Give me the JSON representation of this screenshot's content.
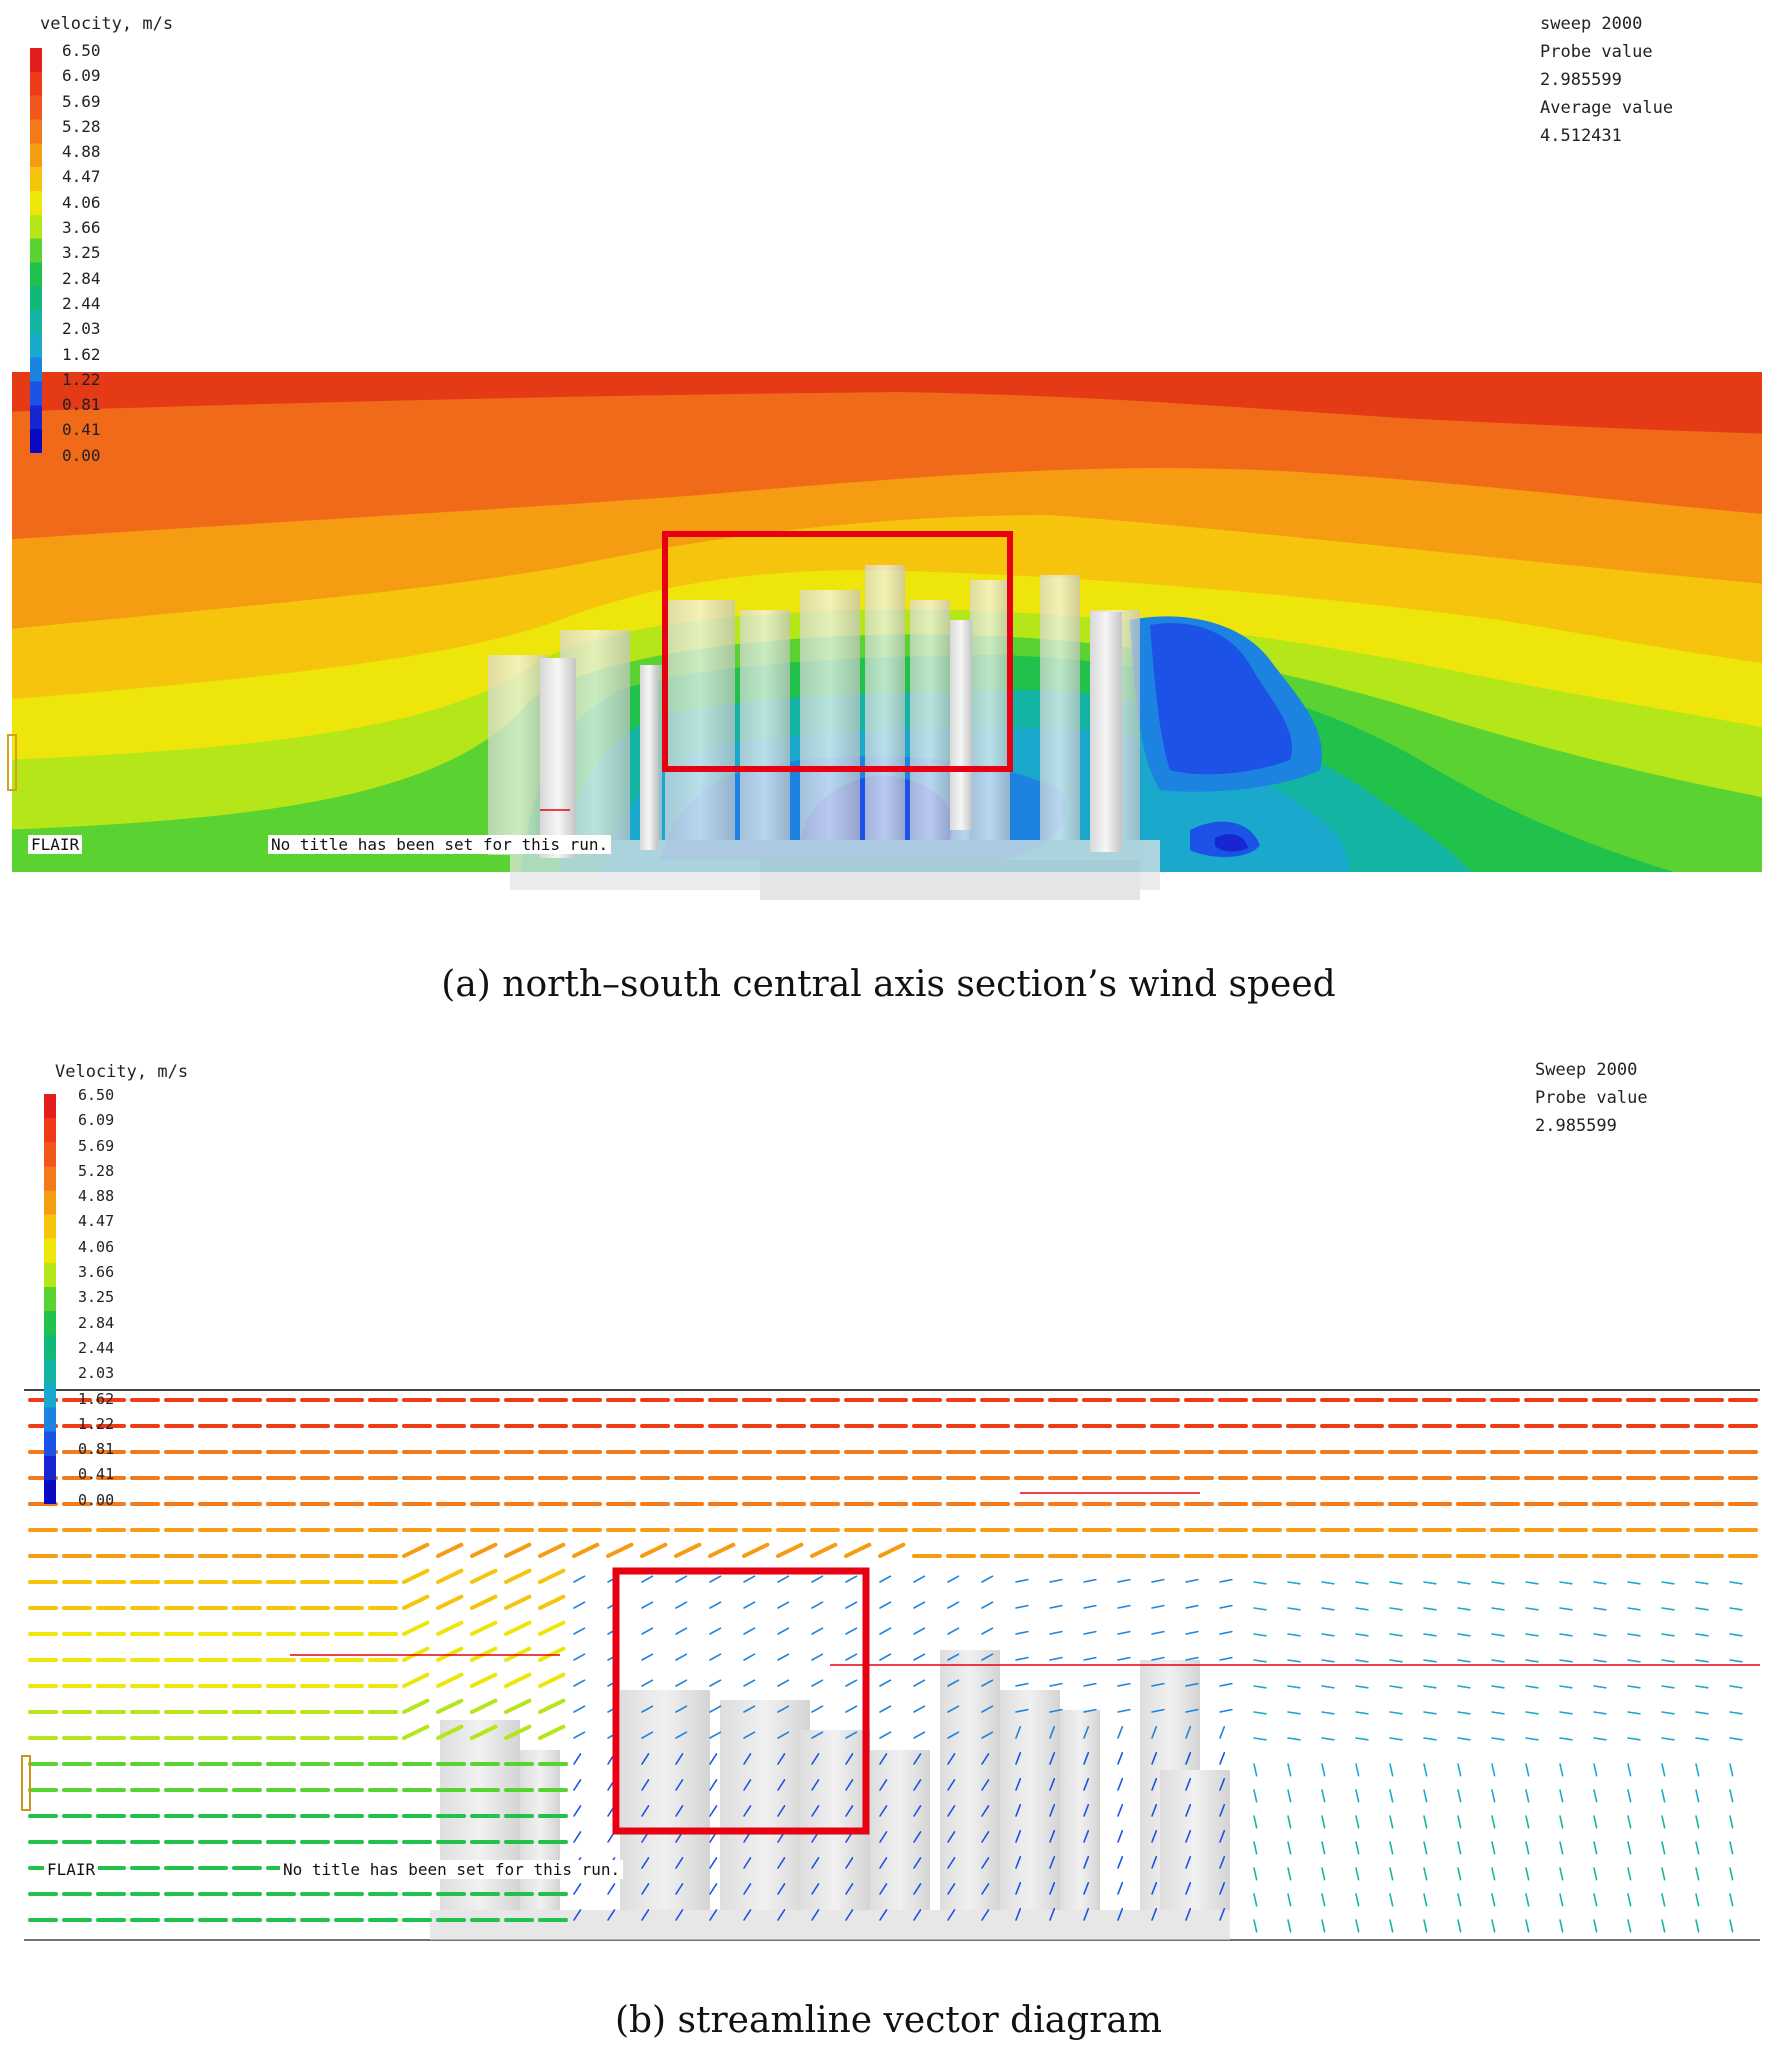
{
  "legend": {
    "title_a": "velocity, m/s",
    "title_b": "Velocity, m/s",
    "values": [
      "6.50",
      "6.09",
      "5.69",
      "5.28",
      "4.88",
      "4.47",
      "4.06",
      "3.66",
      "3.25",
      "2.84",
      "2.44",
      "2.03",
      "1.62",
      "1.22",
      "0.81",
      "0.41",
      "0.00"
    ],
    "colors": [
      "#e41e1e",
      "#ee3a16",
      "#f2561a",
      "#f27a1a",
      "#f59c12",
      "#f6c40c",
      "#eee60a",
      "#b4e61a",
      "#5ad232",
      "#20c24c",
      "#12b878",
      "#14b4a4",
      "#1aa8cc",
      "#1c84e0",
      "#1c52e6",
      "#1826d2",
      "#0a0ac0"
    ]
  },
  "panel_a": {
    "sweep": "sweep 2000",
    "probe_label": "Probe value",
    "probe_value": "2.985599",
    "average_label": "Average value",
    "average_value": "4.512431",
    "flair": "FLAIR",
    "no_title": "No title has been set for this run.",
    "caption": "(a) north–south central axis section’s wind speed"
  },
  "panel_b": {
    "sweep": "Sweep 2000",
    "probe_label": "Probe value",
    "probe_value": "2.985599",
    "flair": "FLAIR",
    "no_title": "No title has been set for this run.",
    "caption": "(b) streamline vector diagram"
  },
  "highlight_color": "#e60012"
}
